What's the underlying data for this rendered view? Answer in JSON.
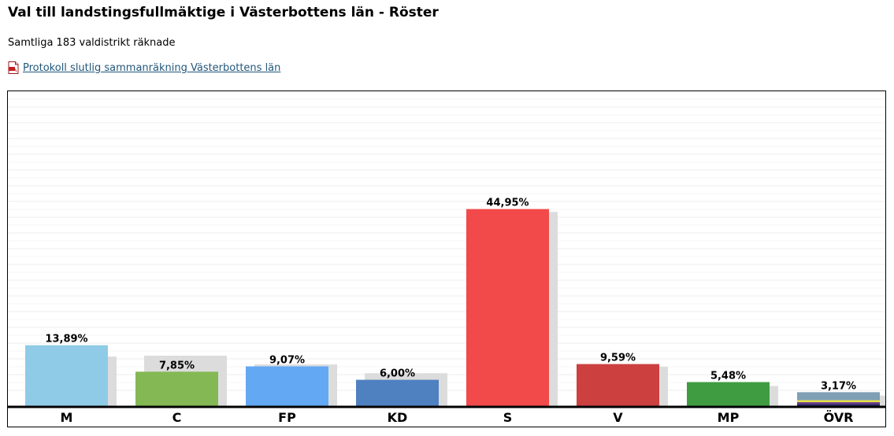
{
  "page": {
    "title": "Val till landstingsfullmäktige i Västerbottens län - Röster",
    "subtitle": "Samtliga 183 valdistrikt räknade",
    "protocol_link": "Protokoll slutlig sammanräkning Västerbottens län",
    "protocol_icon": "pdf-icon"
  },
  "chart_data": {
    "type": "bar",
    "title": "",
    "xlabel": "",
    "ylabel": "",
    "ylim": [
      0,
      48
    ],
    "grid": true,
    "categories": [
      "M",
      "C",
      "FP",
      "KD",
      "S",
      "V",
      "MP",
      "ÖVR"
    ],
    "series": [
      {
        "values": [
          13.89,
          7.85,
          9.07,
          6.0,
          44.95,
          9.59,
          5.48,
          3.17
        ],
        "value_labels": [
          "13,89%",
          "7,85%",
          "9,07%",
          "6,00%",
          "44,95%",
          "9,59%",
          "5,48%",
          "3,17%"
        ],
        "colors": [
          "#8fcbe6",
          "#84b854",
          "#63a8f2",
          "#4f80c0",
          "#f24a4a",
          "#cc4040",
          "#3f9c41",
          "#7f9fb6"
        ]
      },
      {
        "values": [
          11.3,
          11.5,
          9.5,
          7.5,
          44.3,
          9.0,
          4.6,
          2.4
        ],
        "color": "#dcdcdc"
      }
    ],
    "other_stripes": [
      "#7f9fb6",
      "#e8e040",
      "#6b3b8c",
      "#2b2b63"
    ]
  }
}
